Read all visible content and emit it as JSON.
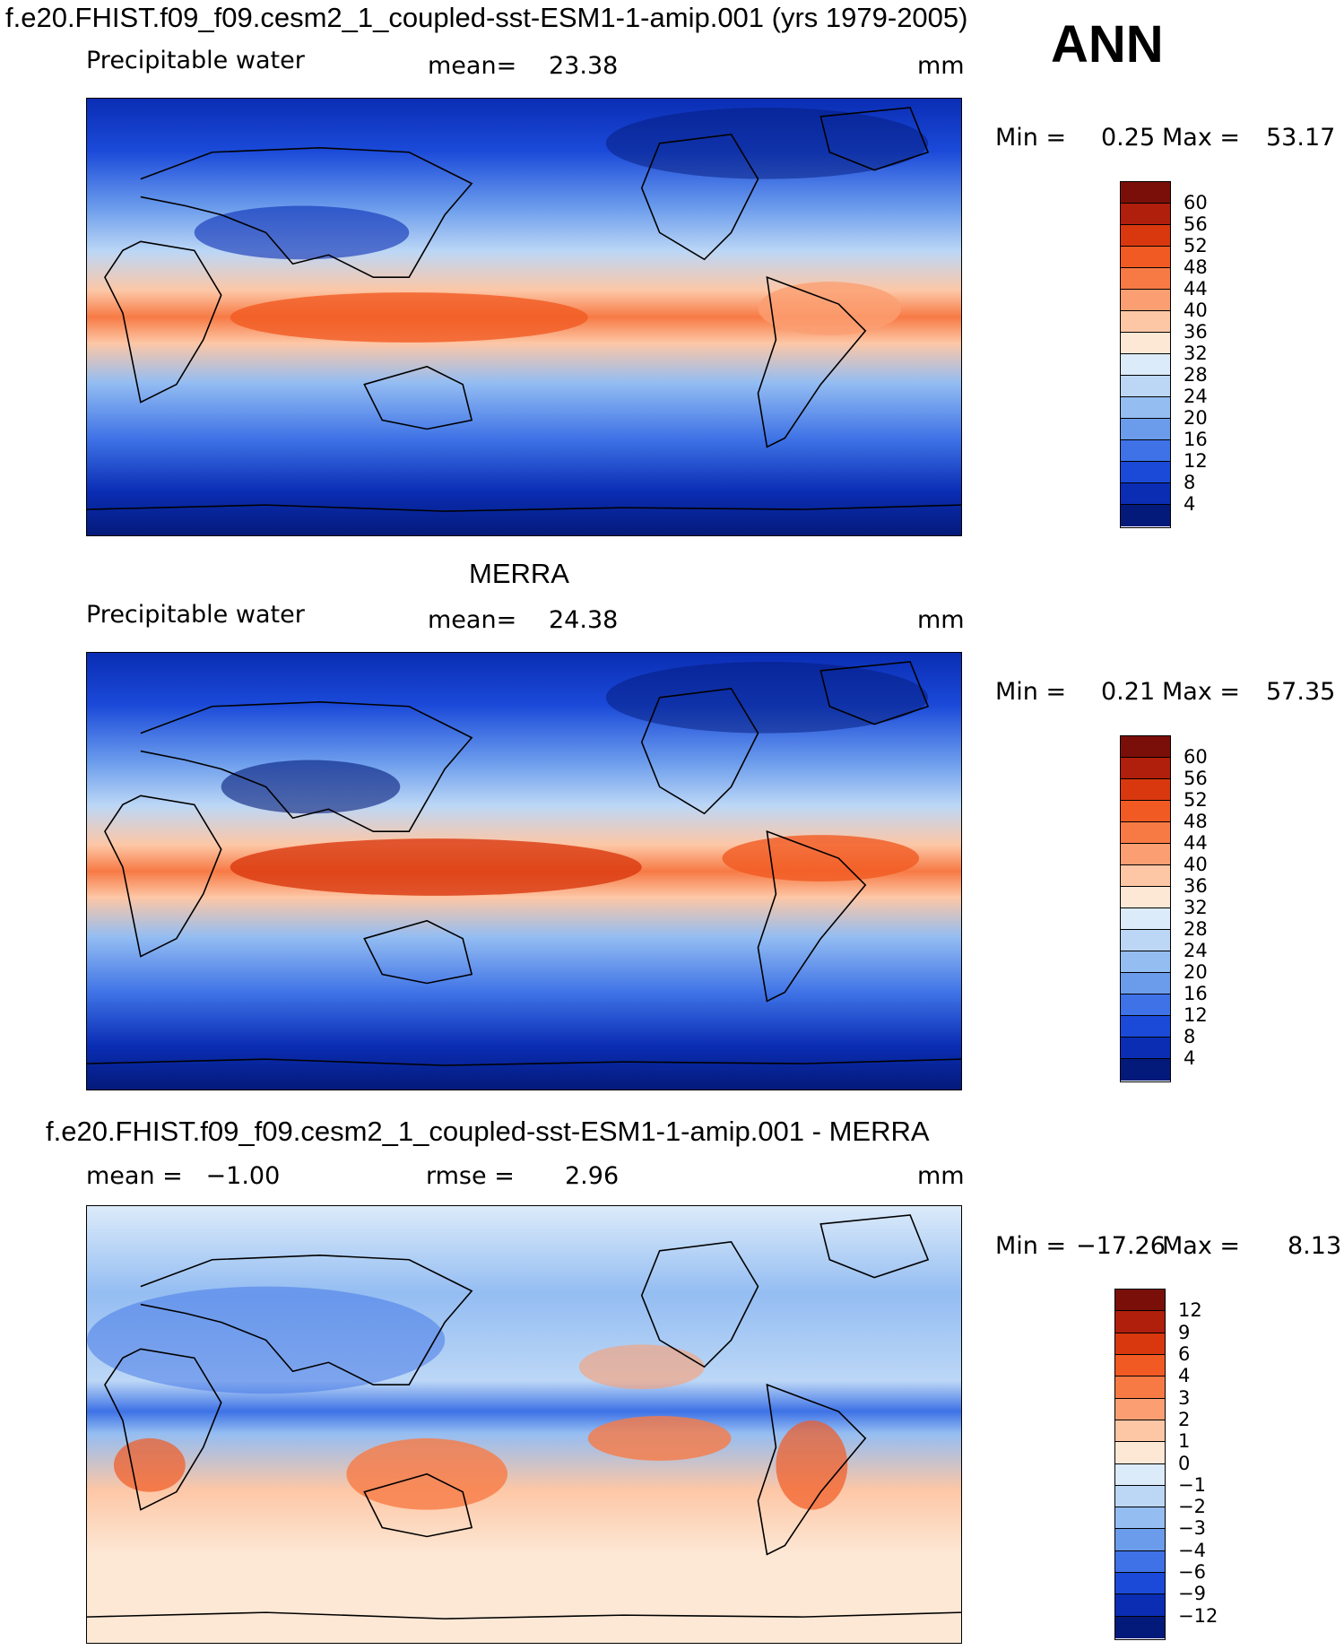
{
  "figure": {
    "main_title": "f.e20.FHIST.f09_f09.cesm2_1_coupled-sst-ESM1-1-amip.001 (yrs 1979-2005)",
    "season": "ANN"
  },
  "panels": [
    {
      "id": "model",
      "title": "",
      "variable": "Precipitable water",
      "stat_left": "",
      "mean_label": "mean=",
      "mean_value": "23.38",
      "units": "mm",
      "min_label": "Min =",
      "min_value": "0.25",
      "max_label": "Max =",
      "max_value": "53.17",
      "colorbar_levels": [
        "60",
        "56",
        "52",
        "48",
        "44",
        "40",
        "36",
        "32",
        "28",
        "24",
        "20",
        "16",
        "12",
        "8",
        "4"
      ],
      "colorbar_colors": [
        "#7a0f0a",
        "#b01e0c",
        "#d9380e",
        "#f15a22",
        "#f77a45",
        "#fb9f72",
        "#fdc7a6",
        "#fde8d6",
        "#dcebfa",
        "#bcd7f6",
        "#94bdf2",
        "#6b9cec",
        "#3e72e6",
        "#1b4ad9",
        "#0a2db4",
        "#041a7a"
      ]
    },
    {
      "id": "obs",
      "title": "MERRA",
      "variable": "Precipitable water",
      "stat_left": "",
      "mean_label": "mean=",
      "mean_value": "24.38",
      "units": "mm",
      "min_label": "Min =",
      "min_value": "0.21",
      "max_label": "Max =",
      "max_value": "57.35",
      "colorbar_levels": [
        "60",
        "56",
        "52",
        "48",
        "44",
        "40",
        "36",
        "32",
        "28",
        "24",
        "20",
        "16",
        "12",
        "8",
        "4"
      ],
      "colorbar_colors": [
        "#7a0f0a",
        "#b01e0c",
        "#d9380e",
        "#f15a22",
        "#f77a45",
        "#fb9f72",
        "#fdc7a6",
        "#fde8d6",
        "#dcebfa",
        "#bcd7f6",
        "#94bdf2",
        "#6b9cec",
        "#3e72e6",
        "#1b4ad9",
        "#0a2db4",
        "#041a7a"
      ]
    },
    {
      "id": "diff",
      "title": "f.e20.FHIST.f09_f09.cesm2_1_coupled-sst-ESM1-1-amip.001 - MERRA",
      "variable": "",
      "stat_left": "mean =   −1.00",
      "mean_label": "rmse =",
      "mean_value": "2.96",
      "units": "mm",
      "min_label": "Min =",
      "min_value": "−17.26",
      "max_label": "Max =",
      "max_value": "8.13",
      "colorbar_levels": [
        "12",
        "9",
        "6",
        "4",
        "3",
        "2",
        "1",
        "0",
        "−1",
        "−2",
        "−3",
        "−4",
        "−6",
        "−9",
        "−12"
      ],
      "colorbar_colors": [
        "#7a0f0a",
        "#b01e0c",
        "#d9380e",
        "#f15a22",
        "#f77a45",
        "#fb9f72",
        "#fdc7a6",
        "#fde8d6",
        "#dcebfa",
        "#bcd7f6",
        "#94bdf2",
        "#6b9cec",
        "#3e72e6",
        "#1b4ad9",
        "#0a2db4",
        "#041a7a"
      ]
    }
  ]
}
